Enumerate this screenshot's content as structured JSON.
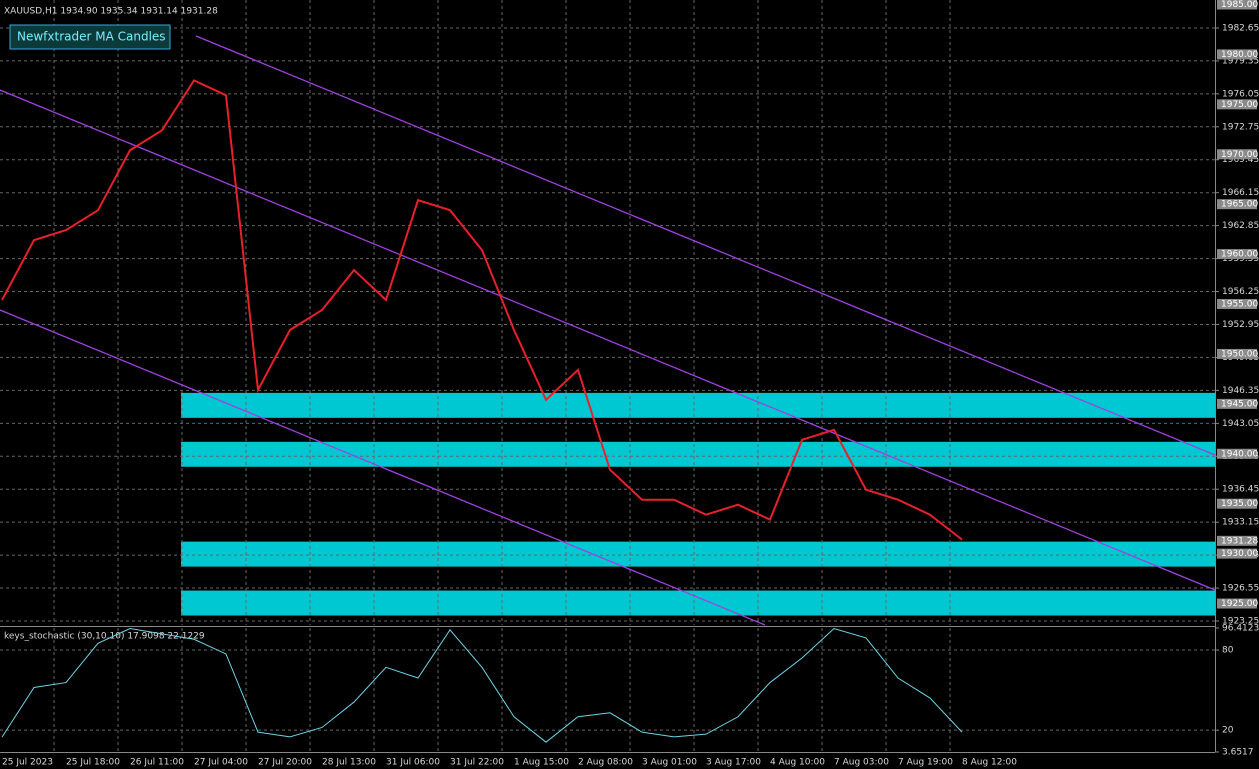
{
  "header": {
    "symbol_info": "XAUUSD,H1  1934.90 1935.34 1931.14 1931.28"
  },
  "button": "Newfxtrader MA Candles",
  "chart_data": [
    {
      "type": "line",
      "color": "#e8202a",
      "categories": [
        "25 Jul 2023",
        null,
        "25 Jul 18:00",
        null,
        "26 Jul 11:00",
        null,
        "27 Jul 04:00",
        null,
        "27 Jul 20:00",
        null,
        "28 Jul 13:00",
        null,
        "31 Jul 06:00",
        null,
        "31 Jul 22:00",
        null,
        "1 Aug 15:00",
        null,
        "2 Aug 08:00",
        null,
        "3 Aug 01:00",
        null,
        "3 Aug 17:00",
        null,
        "4 Aug 10:00",
        null,
        "7 Aug 03:00",
        null,
        "7 Aug 19:00",
        null,
        "8 Aug 12:00"
      ],
      "values": [
        1955.4,
        1961.4,
        1962.4,
        1964.4,
        1970.4,
        1972.4,
        1977.4,
        1975.9,
        1946.4,
        1952.4,
        1954.4,
        1958.4,
        1955.4,
        1965.4,
        1964.4,
        1960.4,
        1952.4,
        1945.4,
        1948.4,
        1938.4,
        1935.4,
        1935.4,
        1933.9,
        1934.9,
        1933.4,
        1941.4,
        1942.4,
        1936.4,
        1935.4,
        1933.9,
        1931.4
      ],
      "ylim": [
        1922.85,
        1985.45
      ],
      "yticks": [
        1982.65,
        1979.35,
        1976.05,
        1972.75,
        1969.45,
        1966.15,
        1962.85,
        1959.55,
        1956.25,
        1952.95,
        1949.65,
        1946.35,
        1943.05,
        1939.75,
        1936.45,
        1933.15,
        1929.85,
        1926.55,
        1923.25
      ],
      "levels": [
        {
          "value": 1985,
          "label": "1985.00"
        },
        {
          "value": 1980,
          "label": "1980.00"
        },
        {
          "value": 1975,
          "label": "1975.00"
        },
        {
          "value": 1970,
          "label": "1970.00"
        },
        {
          "value": 1965,
          "label": "1965.00"
        },
        {
          "value": 1960,
          "label": "1960.00"
        },
        {
          "value": 1955,
          "label": "1955.00"
        },
        {
          "value": 1950,
          "label": "1950.00"
        },
        {
          "value": 1945,
          "label": "1945.00"
        },
        {
          "value": 1940,
          "label": "1940.00"
        },
        {
          "value": 1935,
          "label": "1935.00"
        },
        {
          "value": 1931.28,
          "label": "1931.28"
        },
        {
          "value": 1930,
          "label": "1930.00"
        },
        {
          "value": 1925,
          "label": "1925.00"
        }
      ],
      "zones": [
        [
          1943.6,
          1946.1
        ],
        [
          1938.7,
          1941.2
        ],
        [
          1928.7,
          1931.2
        ],
        [
          1923.8,
          1926.3
        ]
      ],
      "zone_color": "#00c8d2",
      "grid": true
    },
    {
      "type": "line",
      "color": "#6fd3e6",
      "title": "keys_stochastic (30,10,10) 17.9098 22.1229",
      "values": [
        14.8,
        51.9,
        55.6,
        85,
        96,
        92,
        88,
        77,
        18.5,
        15,
        22,
        41,
        67,
        59,
        95,
        67,
        30,
        11,
        30,
        33,
        18.5,
        15,
        17,
        30,
        55.6,
        74,
        96,
        89,
        59,
        44,
        18.5
      ],
      "ylim": [
        3.6517,
        96.4123
      ],
      "yticks": [
        96.4123,
        80,
        20,
        3.6517
      ],
      "grid": true
    }
  ]
}
